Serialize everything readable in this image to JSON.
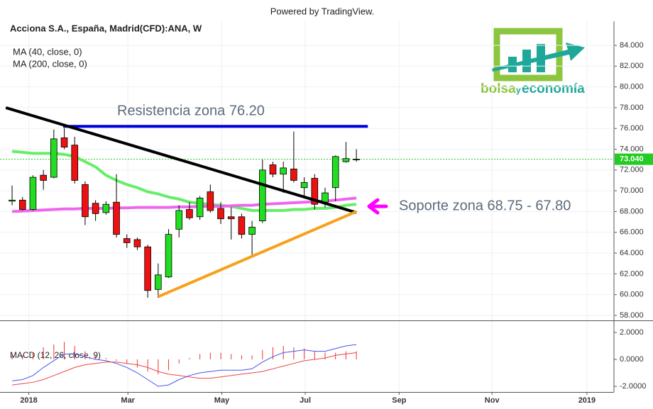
{
  "header": {
    "powered": "Powered by TradingView.",
    "symbol": "Acciona S.A., España, Madrid(CFD):ANA, W"
  },
  "logo": {
    "parts": [
      "bolsa",
      "y",
      "economía"
    ]
  },
  "chart_data": [
    {
      "type": "candlestick",
      "x": [
        0,
        1,
        2,
        3,
        4,
        5,
        6,
        7,
        8,
        9,
        10,
        11,
        12,
        13,
        14,
        15,
        16,
        17,
        18,
        19,
        20,
        21,
        22,
        23,
        24,
        25,
        26,
        27,
        28,
        29,
        30,
        31,
        32,
        33
      ],
      "open": [
        69.0,
        69.1,
        68.2,
        71.5,
        71.3,
        75.1,
        74.4,
        70.6,
        68.8,
        67.9,
        68.9,
        65.4,
        65.3,
        64.6,
        60.5,
        61.7,
        66.3,
        68.2,
        67.5,
        69.9,
        68.3,
        67.5,
        67.5,
        65.8,
        67.1,
        72.5,
        71.6,
        72.1,
        70.3,
        71.2,
        68.9,
        70.3,
        72.8,
        73.0
      ],
      "high": [
        70.5,
        69.4,
        71.5,
        72.0,
        75.9,
        76.0,
        75.2,
        70.9,
        69.1,
        69.0,
        71.6,
        65.8,
        65.5,
        64.8,
        63.0,
        66.3,
        68.6,
        68.9,
        69.5,
        70.6,
        68.9,
        68.4,
        67.8,
        67.1,
        73.0,
        72.8,
        72.8,
        75.7,
        71.3,
        71.6,
        70.3,
        73.4,
        74.7,
        74.0
      ],
      "low": [
        68.6,
        68.1,
        68.1,
        70.1,
        71.2,
        74.0,
        70.7,
        66.7,
        67.1,
        67.7,
        65.5,
        64.5,
        64.3,
        59.7,
        59.7,
        61.6,
        65.5,
        67.2,
        67.2,
        67.9,
        66.8,
        65.3,
        65.4,
        63.8,
        66.9,
        71.3,
        69.8,
        70.8,
        69.5,
        68.2,
        68.4,
        69.0,
        72.7,
        72.8
      ],
      "close": [
        69.1,
        68.2,
        71.3,
        71.0,
        75.0,
        74.2,
        71.0,
        67.5,
        67.8,
        68.7,
        65.8,
        65.0,
        64.6,
        60.4,
        61.9,
        65.8,
        68.1,
        67.4,
        69.3,
        68.1,
        67.3,
        67.3,
        65.8,
        66.5,
        72.0,
        71.6,
        72.2,
        71.0,
        70.8,
        68.7,
        69.8,
        73.3,
        73.1,
        73.04
      ],
      "up_color": "#22dd22",
      "down_color": "#ee1111",
      "series": [
        {
          "name": "MA (40, close, 0)",
          "color": "#66ee66",
          "values": [
            73.8,
            73.7,
            73.6,
            73.6,
            73.6,
            73.5,
            73.3,
            72.8,
            72.3,
            71.5,
            71.0,
            70.6,
            70.3,
            69.9,
            69.7,
            69.4,
            69.2,
            68.9,
            68.8,
            68.7,
            68.6,
            68.5,
            68.3,
            68.1,
            68.1,
            68.1,
            68.1,
            68.2,
            68.2,
            68.3,
            68.3,
            68.4,
            68.6,
            68.7
          ]
        },
        {
          "name": "MA (200, close, 0)",
          "color": "#ee66ee",
          "values": [
            68.0,
            68.05,
            68.1,
            68.15,
            68.2,
            68.25,
            68.25,
            68.3,
            68.3,
            68.3,
            68.35,
            68.35,
            68.4,
            68.4,
            68.4,
            68.4,
            68.45,
            68.45,
            68.5,
            68.5,
            68.5,
            68.55,
            68.6,
            68.6,
            68.7,
            68.75,
            68.8,
            68.85,
            68.9,
            68.95,
            69.0,
            69.1,
            69.2,
            69.3
          ]
        }
      ],
      "last": {
        "value": 73.04,
        "label": "73.040",
        "color": "#22cc22"
      },
      "xlim": [
        -1.16,
        57.69
      ],
      "xticks": [
        {
          "value": 1.6,
          "label": "2018"
        },
        {
          "value": 11.1,
          "label": "Mar"
        },
        {
          "value": 20.1,
          "label": "May"
        },
        {
          "value": 28.1,
          "label": "Jul"
        },
        {
          "value": 37.1,
          "label": "Sep"
        },
        {
          "value": 46.0,
          "label": "Nov"
        },
        {
          "value": 55.1,
          "label": "2019"
        }
      ],
      "ylim": [
        57.52,
        86.32
      ],
      "yticks": [
        {
          "value": 58,
          "label": "58.000"
        },
        {
          "value": 60,
          "label": "60.000"
        },
        {
          "value": 62,
          "label": "62.000"
        },
        {
          "value": 64,
          "label": "64.000"
        },
        {
          "value": 66,
          "label": "66.000"
        },
        {
          "value": 68,
          "label": "68.000"
        },
        {
          "value": 70,
          "label": "70.000"
        },
        {
          "value": 72,
          "label": "72.000"
        },
        {
          "value": 74,
          "label": "74.000"
        },
        {
          "value": 76,
          "label": "76.000"
        },
        {
          "value": 78,
          "label": "78.000"
        },
        {
          "value": 80,
          "label": "80.000"
        },
        {
          "value": 82,
          "label": "82.000"
        },
        {
          "value": 84,
          "label": "84.000"
        }
      ],
      "grid": true,
      "lines": [
        {
          "color": "#0000dd",
          "x": [
            4.9,
            34.1
          ],
          "y": [
            76.2,
            76.2
          ],
          "text": "Resistencia zona 76.20"
        },
        {
          "color": "#000000",
          "x": [
            -0.6,
            33
          ],
          "y": [
            78.0,
            67.9
          ]
        },
        {
          "color": "#f7a11a",
          "x": [
            14,
            33
          ],
          "y": [
            59.8,
            68.0
          ]
        }
      ],
      "support": {
        "text": "Soporte zona 68.75 - 67.80",
        "color": "#ff00ff",
        "y": 68.5
      }
    },
    {
      "type": "macd",
      "title": "MACD (12, 26, close, 9)",
      "series": [
        {
          "style": "bar",
          "color": "#ee3333",
          "values": [
            0.3,
            0.3,
            0.5,
            0.9,
            1.1,
            1.3,
            1.0,
            0.6,
            0.3,
            0.1,
            -0.1,
            -0.3,
            -0.6,
            -0.9,
            -1.1,
            -0.8,
            -0.3,
            0.1,
            0.4,
            0.5,
            0.5,
            0.4,
            0.3,
            0.3,
            0.7,
            0.9,
            1.0,
            0.9,
            0.8,
            0.6,
            0.5,
            0.5,
            0.6,
            0.6
          ]
        },
        {
          "style": "line",
          "color": "#4455ee",
          "values": [
            -1.6,
            -1.5,
            -1.2,
            -0.6,
            -0.1,
            0.4,
            0.4,
            0.2,
            0.0,
            -0.1,
            -0.3,
            -0.6,
            -1.0,
            -1.5,
            -2.0,
            -1.9,
            -1.5,
            -1.2,
            -1.0,
            -0.9,
            -0.8,
            -0.8,
            -0.8,
            -0.7,
            -0.2,
            0.2,
            0.5,
            0.6,
            0.7,
            0.6,
            0.6,
            0.8,
            1.0,
            1.1
          ]
        },
        {
          "style": "line",
          "color": "#ee4444",
          "values": [
            -1.9,
            -1.8,
            -1.7,
            -1.5,
            -1.2,
            -0.9,
            -0.6,
            -0.4,
            -0.3,
            -0.2,
            -0.2,
            -0.3,
            -0.4,
            -0.6,
            -0.9,
            -1.1,
            -1.2,
            -1.3,
            -1.4,
            -1.4,
            -1.3,
            -1.2,
            -1.1,
            -1.0,
            -0.9,
            -0.7,
            -0.5,
            -0.3,
            -0.1,
            0.0,
            0.1,
            0.3,
            0.4,
            0.5
          ]
        }
      ],
      "ylim": [
        -2.42,
        2.84
      ],
      "yticks": [
        {
          "value": 2,
          "label": "2.0000"
        },
        {
          "value": 0,
          "label": "0.0000"
        },
        {
          "value": -2,
          "label": "-2.0000"
        }
      ]
    }
  ]
}
